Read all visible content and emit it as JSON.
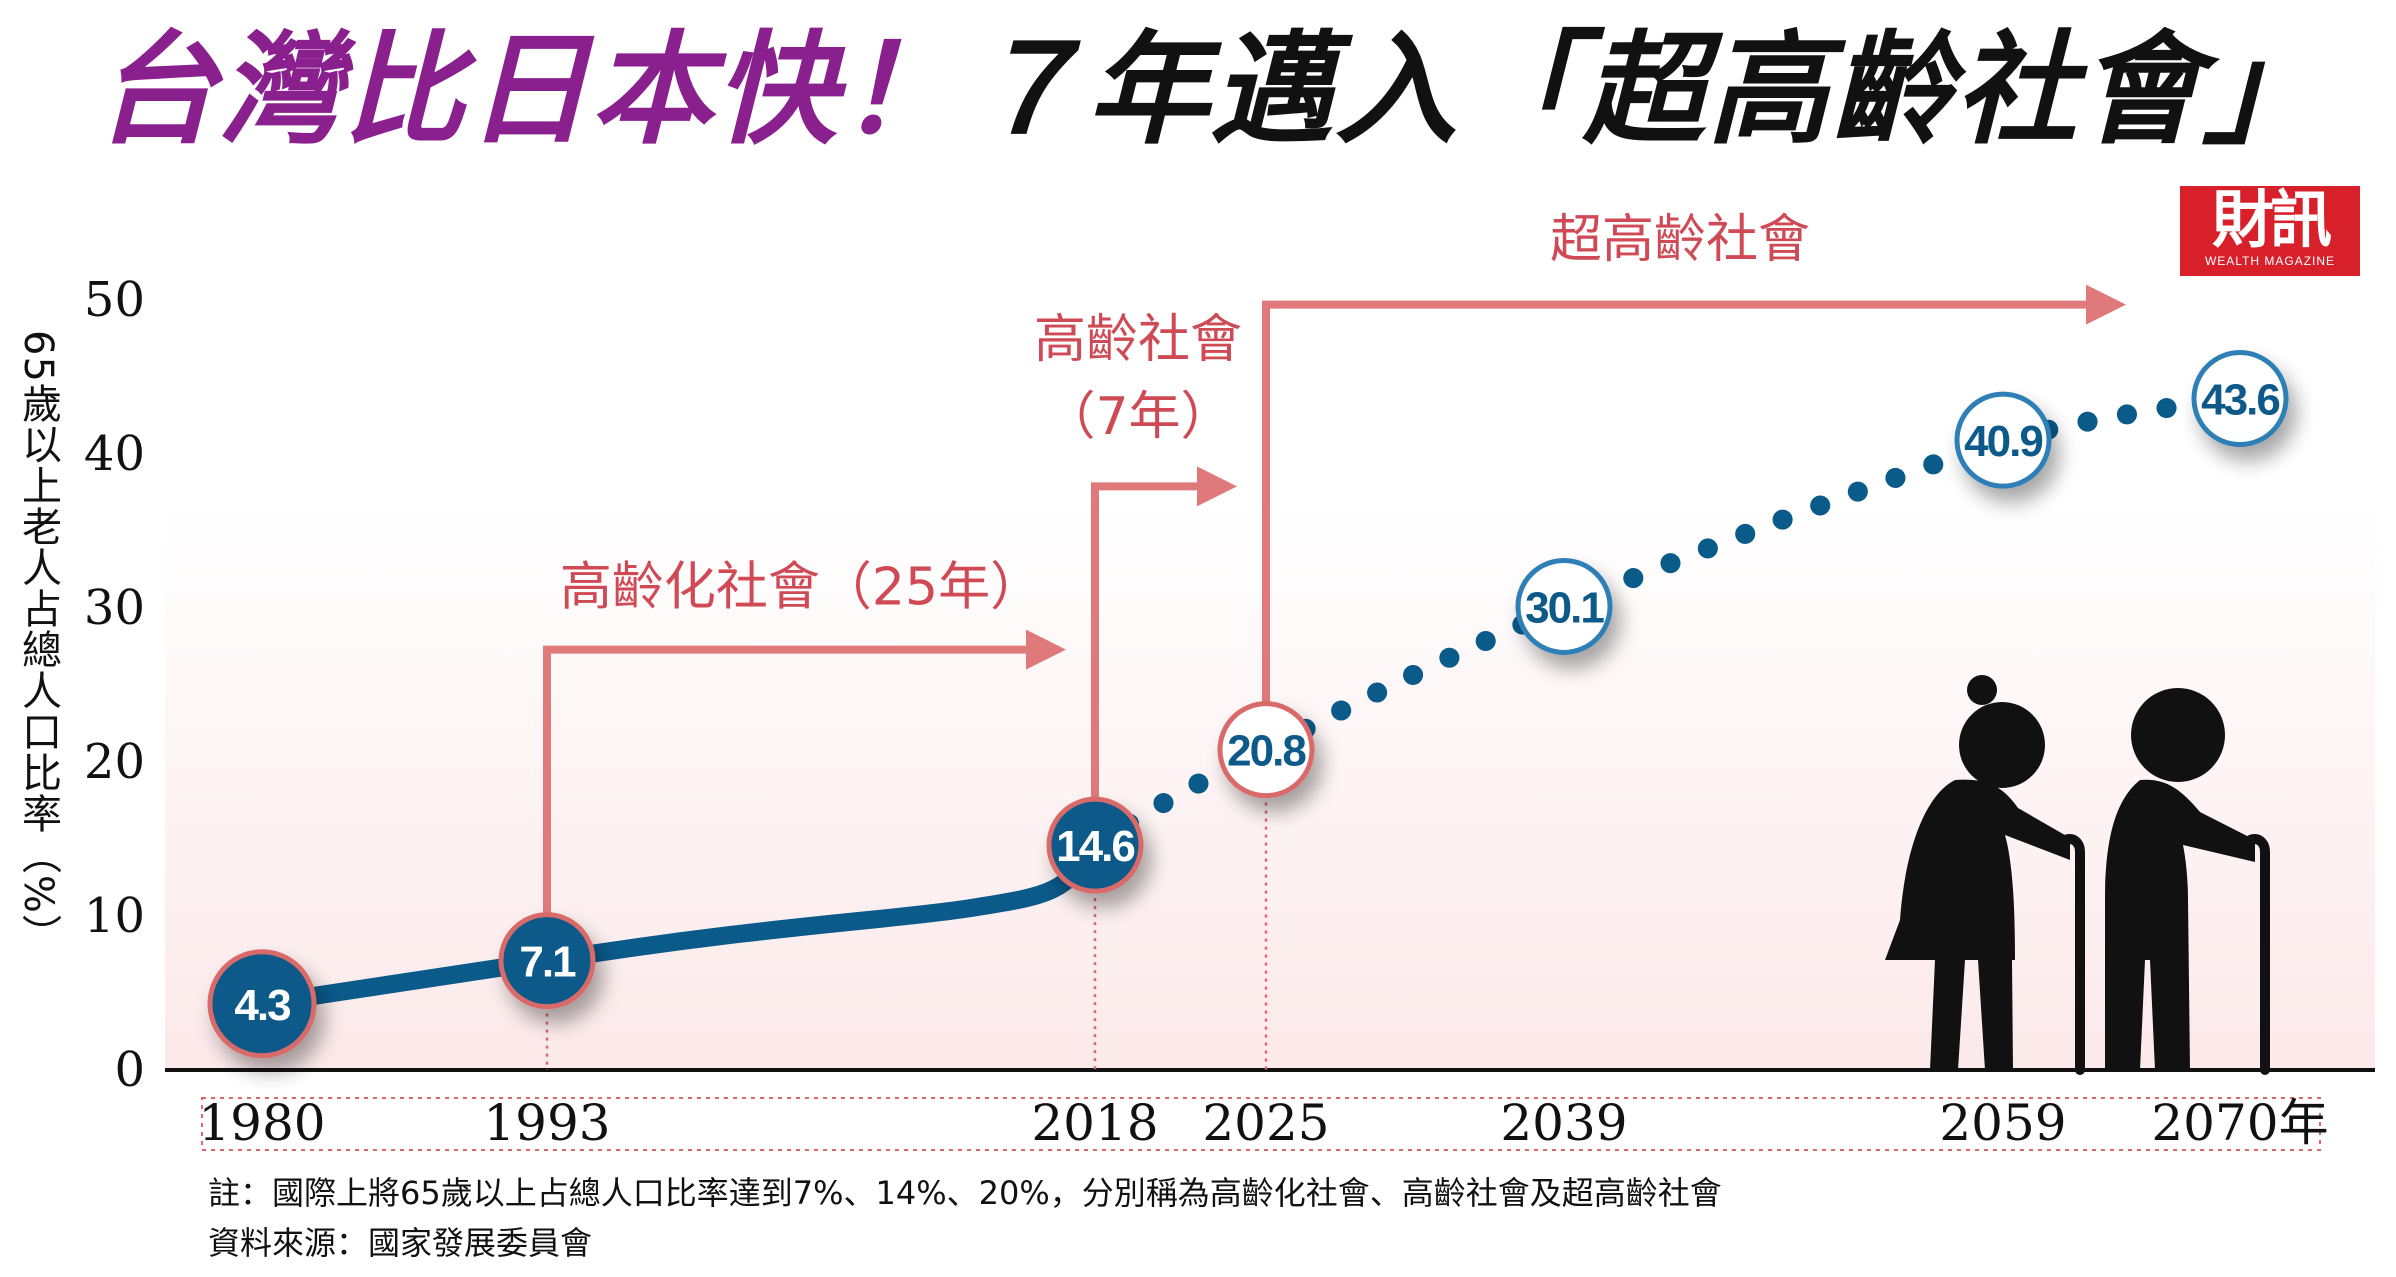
{
  "title": {
    "part1": "台灣比日本快！",
    "part2": "７年邁入「超高齡社會」"
  },
  "logo": {
    "text": "財訊",
    "sub": "WEALTH MAGAZINE"
  },
  "notes": {
    "note": "註：國際上將65歲以上占總人口比率達到7%、14%、20%，分別稱為高齡化社會、高齡社會及超高齡社會",
    "source": "資料來源：國家發展委員會"
  },
  "chart_data": {
    "type": "line",
    "ylabel": "65歲以上老人占總人口比率（%）",
    "xlabel": "年",
    "ylim": [
      0,
      50
    ],
    "yticks": [
      0,
      10,
      20,
      30,
      40,
      50
    ],
    "xticks": [
      "1980",
      "1993",
      "2018",
      "2025",
      "2039",
      "2059",
      "2070年"
    ],
    "series": [
      {
        "style": "solid",
        "points": [
          {
            "x": 1980,
            "y": 4.3,
            "label": "4.3"
          },
          {
            "x": 1993,
            "y": 7.1,
            "label": "7.1"
          },
          {
            "x": 2018,
            "y": 14.6,
            "label": "14.6"
          }
        ]
      },
      {
        "style": "dotted",
        "points": [
          {
            "x": 2018,
            "y": 14.6,
            "label": ""
          },
          {
            "x": 2025,
            "y": 20.8,
            "label": "20.8"
          },
          {
            "x": 2039,
            "y": 30.1,
            "label": "30.1"
          },
          {
            "x": 2059,
            "y": 40.9,
            "label": "40.9"
          },
          {
            "x": 2070,
            "y": 43.6,
            "label": "43.6"
          }
        ]
      }
    ],
    "stages": [
      {
        "label": "高齡化社會（25年）",
        "from": 1993,
        "to": 2018
      },
      {
        "label": "高齡社會",
        "sublabel": "（7年）",
        "from": 2018,
        "to": 2025
      },
      {
        "label": "超高齡社會",
        "from": 2025,
        "to": 2070
      }
    ],
    "colors": {
      "line": "#0a5a8a",
      "marker_fill_actual": "#0a5a8a",
      "marker_fill_projection": "#ffffff",
      "marker_border_actual": "#d96a6a",
      "marker_border_projection": "#2f7fb5",
      "stage_arrow": "#e07a7a",
      "stage_text": "#d04a55",
      "background_gradient": "#fce9ea"
    },
    "grid": false,
    "illustration": "elderly-couple-with-canes-silhouette"
  }
}
